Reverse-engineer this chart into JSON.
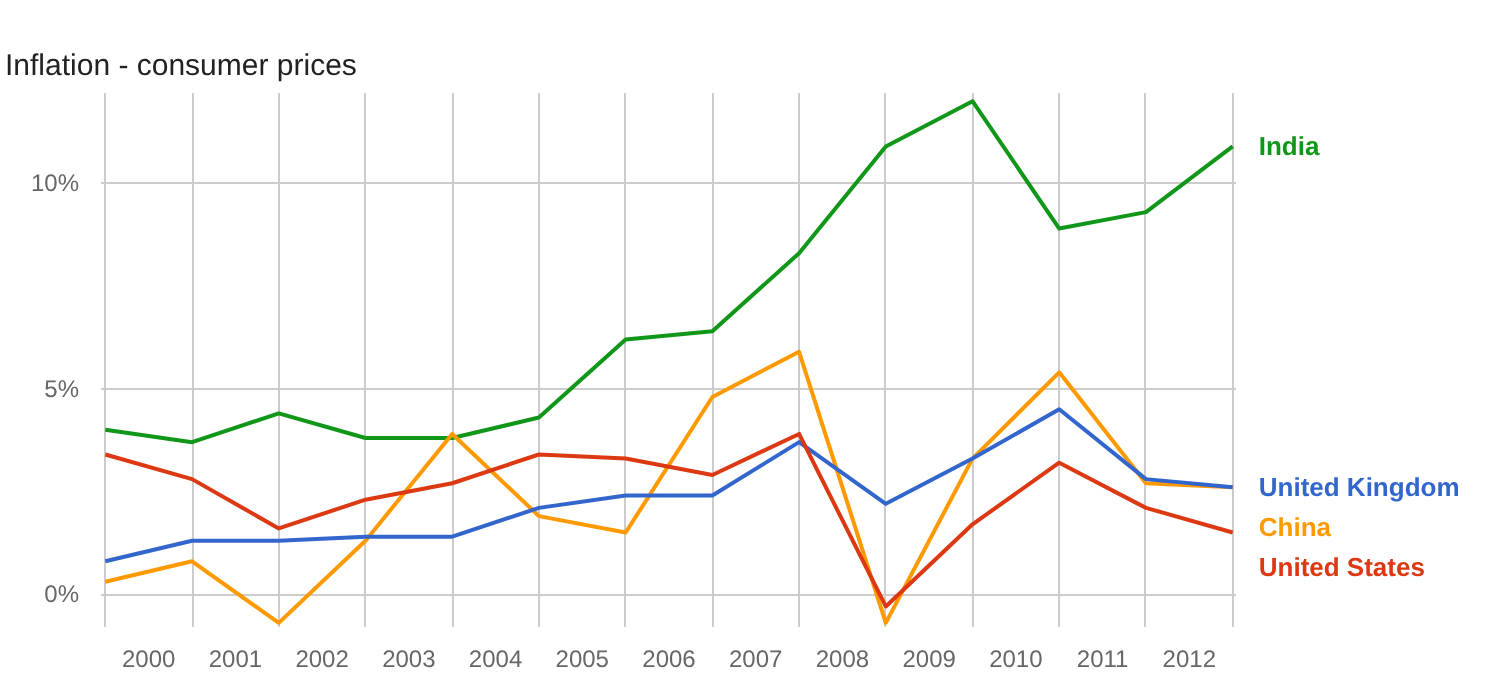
{
  "chart_data": {
    "type": "line",
    "title": "Inflation - consumer prices",
    "x": [
      2000,
      2001,
      2002,
      2003,
      2004,
      2005,
      2006,
      2007,
      2008,
      2009,
      2010,
      2011,
      2012,
      2013
    ],
    "xlim": [
      1999.95,
      2013.05
    ],
    "xticks": [
      {
        "value": 2000,
        "label": null
      },
      {
        "value": 2000.5,
        "label": "2000"
      },
      {
        "value": 2001,
        "label": null
      },
      {
        "value": 2001.5,
        "label": "2001"
      },
      {
        "value": 2002,
        "label": null
      },
      {
        "value": 2002.5,
        "label": "2002"
      },
      {
        "value": 2003,
        "label": null
      },
      {
        "value": 2003.5,
        "label": "2003"
      },
      {
        "value": 2004,
        "label": null
      },
      {
        "value": 2004.5,
        "label": "2004"
      },
      {
        "value": 2005,
        "label": null
      },
      {
        "value": 2005.5,
        "label": "2005"
      },
      {
        "value": 2006,
        "label": null
      },
      {
        "value": 2006.5,
        "label": "2006"
      },
      {
        "value": 2007,
        "label": null
      },
      {
        "value": 2007.5,
        "label": "2007"
      },
      {
        "value": 2008,
        "label": null
      },
      {
        "value": 2008.5,
        "label": "2008"
      },
      {
        "value": 2009,
        "label": null
      },
      {
        "value": 2009.5,
        "label": "2009"
      },
      {
        "value": 2010,
        "label": null
      },
      {
        "value": 2010.5,
        "label": "2010"
      },
      {
        "value": 2011,
        "label": null
      },
      {
        "value": 2011.5,
        "label": "2011"
      },
      {
        "value": 2012,
        "label": null
      },
      {
        "value": 2012.5,
        "label": "2012"
      },
      {
        "value": 2013,
        "label": null
      }
    ],
    "ylim": [
      -0.8,
      12.2
    ],
    "yticks": [
      {
        "value": 0,
        "label": "0%"
      },
      {
        "value": 5,
        "label": "5%"
      },
      {
        "value": 10,
        "label": "10%"
      }
    ],
    "grid": true,
    "legend": false,
    "marker": "none",
    "line_style": "solid",
    "series": [
      {
        "name": "India",
        "color": "#109618",
        "values": [
          4.0,
          3.7,
          4.4,
          3.8,
          3.8,
          4.3,
          6.2,
          6.4,
          8.3,
          10.9,
          12.0,
          8.9,
          9.3,
          10.9
        ]
      },
      {
        "name": "China",
        "color": "#ff9900",
        "values": [
          0.3,
          0.8,
          -0.7,
          1.3,
          3.9,
          1.9,
          1.5,
          4.8,
          5.9,
          -0.7,
          3.3,
          5.4,
          2.7,
          2.6
        ]
      },
      {
        "name": "United Kingdom",
        "color": "#3366cc",
        "values": [
          0.8,
          1.3,
          1.3,
          1.4,
          1.4,
          2.1,
          2.4,
          2.4,
          3.7,
          2.2,
          3.3,
          4.5,
          2.8,
          2.6
        ]
      },
      {
        "name": "United States",
        "color": "#dc3912",
        "values": [
          3.4,
          2.8,
          1.6,
          2.3,
          2.7,
          3.4,
          3.3,
          2.9,
          3.9,
          -0.3,
          1.7,
          3.2,
          2.1,
          1.5
        ]
      }
    ]
  }
}
